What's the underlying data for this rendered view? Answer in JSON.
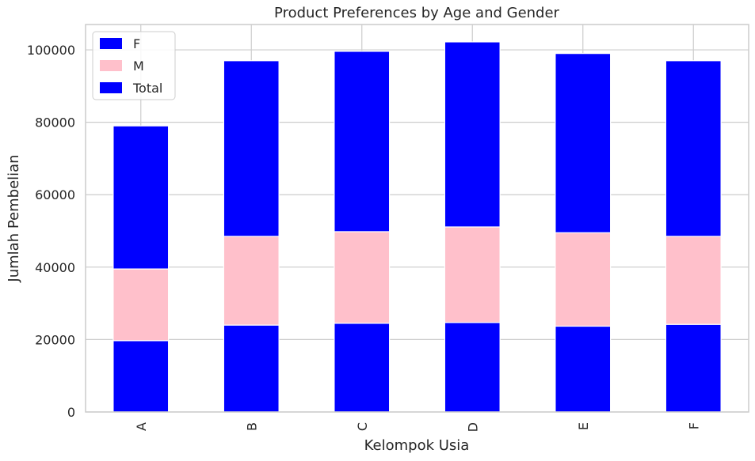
{
  "chart_data": {
    "type": "bar",
    "stacked": true,
    "title": "Product Preferences by Age and Gender",
    "xlabel": "Kelompok Usia",
    "ylabel": "Jumlah Pembelian",
    "categories": [
      "A",
      "B",
      "C",
      "D",
      "E",
      "F"
    ],
    "series": [
      {
        "name": "F",
        "color": "#0000ff",
        "values": [
          19700,
          24000,
          24500,
          24700,
          23700,
          24200
        ]
      },
      {
        "name": "M",
        "color": "#ffc0cb",
        "values": [
          19800,
          24500,
          25300,
          26400,
          25800,
          24300
        ]
      },
      {
        "name": "Total",
        "color": "#0000ff",
        "values": [
          39500,
          48500,
          49800,
          51100,
          49500,
          48500
        ]
      }
    ],
    "ylim": [
      0,
      107000
    ],
    "yticks": [
      0,
      20000,
      40000,
      60000,
      80000,
      100000
    ],
    "grid": true,
    "legend": "top-left"
  }
}
